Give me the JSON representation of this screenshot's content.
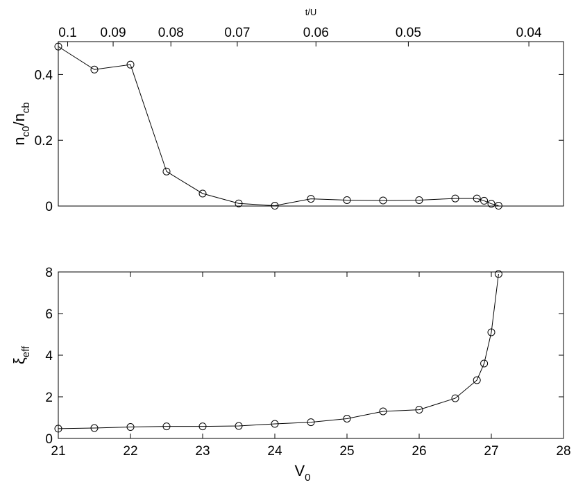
{
  "chart_data": [
    {
      "type": "line",
      "x2label": "t/U",
      "ylabel": [
        "n",
        "c0",
        "/n",
        "cb"
      ],
      "x": [
        21,
        21.5,
        22,
        22.5,
        23,
        23.5,
        24,
        24.5,
        25,
        25.5,
        26,
        26.5,
        26.8,
        26.9,
        27,
        27.1
      ],
      "values": [
        0.485,
        0.415,
        0.43,
        0.105,
        0.038,
        0.008,
        0.001,
        0.022,
        0.018,
        0.017,
        0.018,
        0.023,
        0.023,
        0.016,
        0.007,
        0.001
      ],
      "color": "#000000",
      "xlim": [
        21,
        28
      ],
      "ylim": [
        0,
        0.5
      ],
      "yticks": [
        0,
        0.2,
        0.4
      ],
      "x2ticks": [
        {
          "value": 21.13,
          "label": "0.1"
        },
        {
          "value": 21.76,
          "label": "0.09"
        },
        {
          "value": 22.56,
          "label": "0.08"
        },
        {
          "value": 23.48,
          "label": "0.07"
        },
        {
          "value": 24.57,
          "label": "0.06"
        },
        {
          "value": 25.85,
          "label": "0.05"
        },
        {
          "value": 27.52,
          "label": "0.04"
        }
      ]
    },
    {
      "type": "line",
      "xlabel": [
        "V",
        "0"
      ],
      "ylabel": [
        "ξ",
        "eff"
      ],
      "x": [
        21,
        21.5,
        22,
        22.5,
        23,
        23.5,
        24,
        24.5,
        25,
        25.5,
        26,
        26.5,
        26.8,
        26.9,
        27,
        27.1
      ],
      "values": [
        0.47,
        0.5,
        0.55,
        0.58,
        0.58,
        0.6,
        0.7,
        0.78,
        0.95,
        1.3,
        1.38,
        1.93,
        2.8,
        3.6,
        5.1,
        7.9
      ],
      "color": "#000000",
      "xlim": [
        21,
        28
      ],
      "ylim": [
        0,
        8
      ],
      "xticks": [
        21,
        22,
        23,
        24,
        25,
        26,
        27,
        28
      ],
      "yticks": [
        0,
        2,
        4,
        6,
        8
      ]
    }
  ]
}
